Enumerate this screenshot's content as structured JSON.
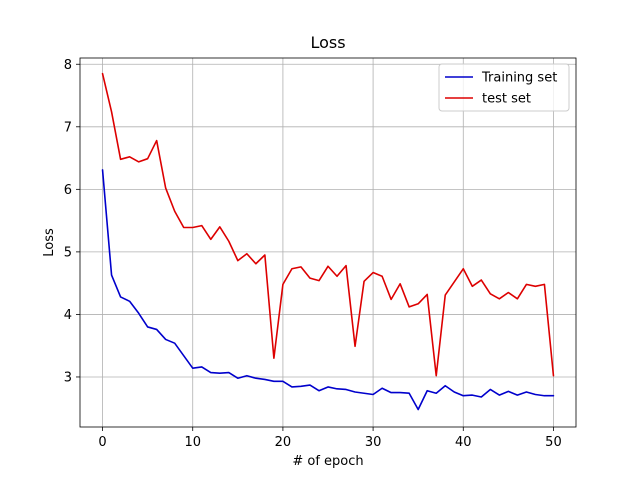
{
  "chart_data": {
    "type": "line",
    "title": "Loss",
    "xlabel": "# of epoch",
    "ylabel": "Loss",
    "xlim": [
      -2.5,
      52.5
    ],
    "ylim": [
      2.2,
      8.1
    ],
    "xticks": [
      0,
      10,
      20,
      30,
      40,
      50
    ],
    "yticks": [
      3,
      4,
      5,
      6,
      7,
      8
    ],
    "grid": true,
    "legend_position": "upper right",
    "x": [
      0,
      1,
      2,
      3,
      4,
      5,
      6,
      7,
      8,
      9,
      10,
      11,
      12,
      13,
      14,
      15,
      16,
      17,
      18,
      19,
      20,
      21,
      22,
      23,
      24,
      25,
      26,
      27,
      28,
      29,
      30,
      31,
      32,
      33,
      34,
      35,
      36,
      37,
      38,
      39,
      40,
      41,
      42,
      43,
      44,
      45,
      46,
      47,
      48,
      49,
      50
    ],
    "series": [
      {
        "name": "Training set",
        "color": "#0000cc",
        "values": [
          6.31,
          4.63,
          4.28,
          4.21,
          4.02,
          3.8,
          3.76,
          3.6,
          3.54,
          3.34,
          3.14,
          3.16,
          3.07,
          3.06,
          3.07,
          2.98,
          3.02,
          2.98,
          2.96,
          2.93,
          2.93,
          2.84,
          2.85,
          2.87,
          2.78,
          2.84,
          2.81,
          2.8,
          2.76,
          2.74,
          2.72,
          2.82,
          2.75,
          2.75,
          2.74,
          2.48,
          2.78,
          2.74,
          2.86,
          2.76,
          2.7,
          2.71,
          2.68,
          2.8,
          2.71,
          2.77,
          2.71,
          2.76,
          2.72,
          2.7,
          2.7
        ]
      },
      {
        "name": "test set",
        "color": "#dd0000",
        "values": [
          7.85,
          7.24,
          6.48,
          6.52,
          6.44,
          6.49,
          6.78,
          6.02,
          5.65,
          5.39,
          5.39,
          5.42,
          5.2,
          5.4,
          5.17,
          4.86,
          4.97,
          4.81,
          4.95,
          3.3,
          4.48,
          4.73,
          4.76,
          4.58,
          4.54,
          4.77,
          4.61,
          4.78,
          3.49,
          4.53,
          4.67,
          4.61,
          4.24,
          4.49,
          4.12,
          4.17,
          4.32,
          3.02,
          4.31,
          4.52,
          4.73,
          4.45,
          4.55,
          4.33,
          4.25,
          4.35,
          4.25,
          4.48,
          4.45,
          4.48,
          3.02
        ]
      }
    ]
  }
}
